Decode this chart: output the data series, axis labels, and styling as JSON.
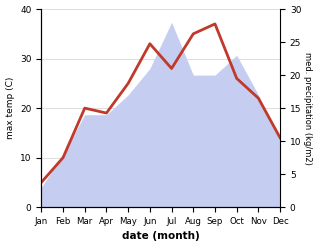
{
  "months": [
    "Jan",
    "Feb",
    "Mar",
    "Apr",
    "May",
    "Jun",
    "Jul",
    "Aug",
    "Sep",
    "Oct",
    "Nov",
    "Dec"
  ],
  "temperature": [
    5,
    10,
    20,
    19,
    25,
    33,
    28,
    35,
    37,
    26,
    22,
    14
  ],
  "precipitation": [
    3,
    8,
    14,
    14,
    17,
    21,
    28,
    20,
    20,
    23,
    17,
    10
  ],
  "temp_color": "#c0392b",
  "precip_color_fill": "#c5cef0",
  "ylim_left": [
    0,
    40
  ],
  "ylim_right": [
    0,
    30
  ],
  "xlabel": "date (month)",
  "ylabel_left": "max temp (C)",
  "ylabel_right": "med. precipitation (kg/m2)",
  "bg_color": "#ffffff",
  "grid_color": "#d0d0d0",
  "left_ticks": [
    0,
    10,
    20,
    30,
    40
  ],
  "right_ticks": [
    0,
    5,
    10,
    15,
    20,
    25,
    30
  ]
}
